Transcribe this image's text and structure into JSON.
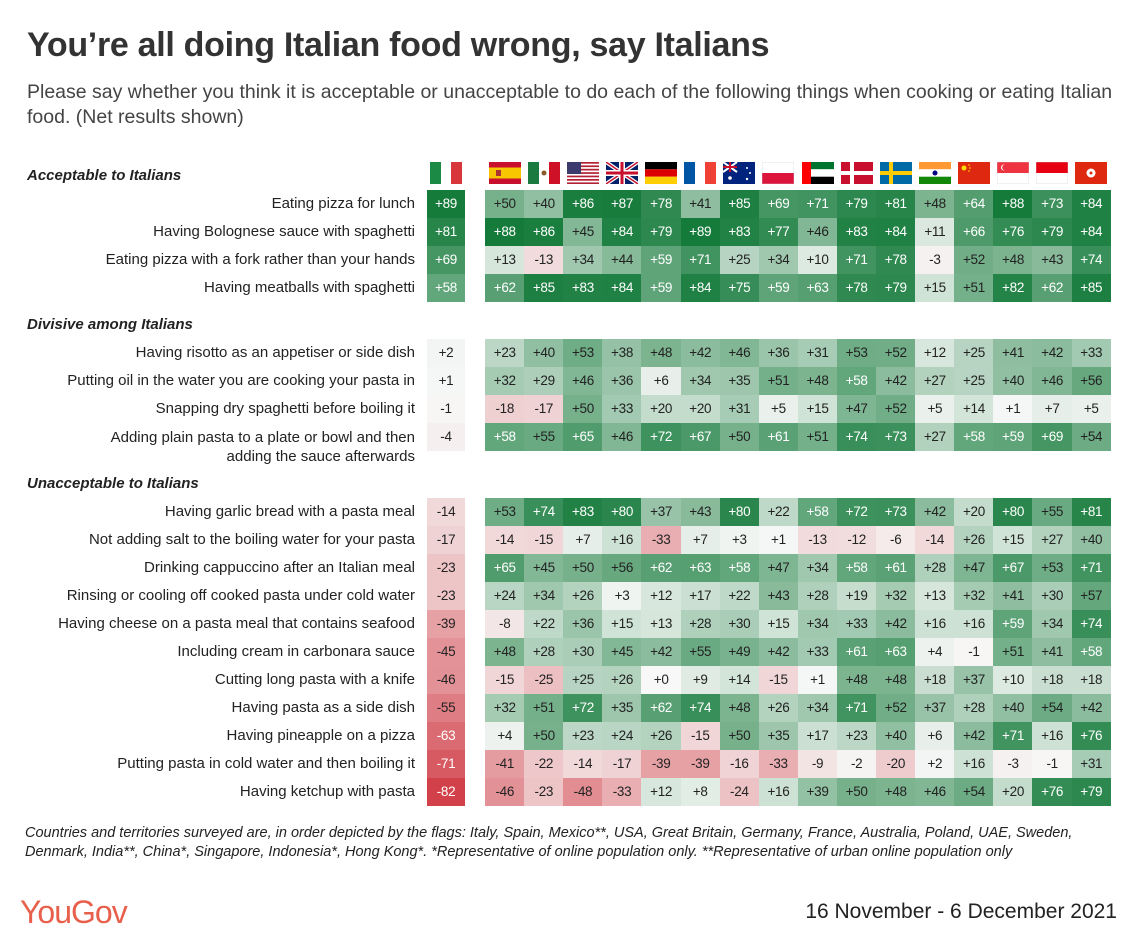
{
  "title": "You’re all doing Italian food wrong, say Italians",
  "subtitle": "Please say whether you think it is acceptable or unacceptable to do each of the following things when cooking or eating Italian food. (Net results shown)",
  "footnote": "Countries and territories surveyed are, in order depicted by the flags: Italy, Spain, Mexico**, USA, Great Britain, Germany, France, Australia, Poland, UAE, Sweden, Denmark, India**, China*, Singapore, Indonesia*, Hong Kong*. *Representative of online population only. **Representative of urban online population only",
  "logo": "YouGov",
  "date": "16 November - 6 December 2021",
  "colors": {
    "positive": "#157b3b",
    "negative": "#d13a44",
    "neutral": "#f7f8f7"
  },
  "chart_data": {
    "type": "heatmap",
    "columns": [
      "italy-flag",
      "spain-flag",
      "mexico-flag",
      "usa-flag",
      "uk-flag",
      "germany-flag",
      "france-flag",
      "australia-flag",
      "poland-flag",
      "uae-flag",
      "denmark-flag",
      "sweden-flag",
      "india-flag",
      "china-flag",
      "singapore-flag",
      "indonesia-flag",
      "hongkong-flag"
    ],
    "sections": [
      {
        "title": "Acceptable to Italians",
        "rows": [
          {
            "label": "Eating pizza for lunch",
            "values": [
              89,
              50,
              40,
              86,
              87,
              78,
              41,
              85,
              69,
              71,
              79,
              81,
              48,
              64,
              88,
              73,
              84
            ]
          },
          {
            "label": "Having Bolognese sauce with spaghetti",
            "values": [
              81,
              88,
              86,
              45,
              84,
              79,
              89,
              83,
              77,
              46,
              83,
              84,
              11,
              66,
              76,
              79,
              84
            ]
          },
          {
            "label": "Eating pizza with a fork rather than your hands",
            "values": [
              69,
              13,
              -13,
              34,
              44,
              59,
              71,
              25,
              34,
              10,
              71,
              78,
              -3,
              52,
              48,
              43,
              74
            ]
          },
          {
            "label": "Having meatballs with spaghetti",
            "values": [
              58,
              62,
              85,
              83,
              84,
              59,
              84,
              75,
              59,
              63,
              78,
              79,
              15,
              51,
              82,
              62,
              85
            ]
          }
        ]
      },
      {
        "title": "Divisive among Italians",
        "rows": [
          {
            "label": "Having risotto as an appetiser or side dish",
            "values": [
              2,
              23,
              40,
              53,
              38,
              48,
              42,
              46,
              36,
              31,
              53,
              52,
              12,
              25,
              41,
              42,
              33
            ]
          },
          {
            "label": "Putting oil in the water you are cooking your pasta in",
            "values": [
              1,
              32,
              29,
              46,
              36,
              6,
              34,
              35,
              51,
              48,
              58,
              42,
              27,
              25,
              40,
              46,
              56
            ]
          },
          {
            "label": "Snapping dry spaghetti before boiling it",
            "values": [
              -1,
              -18,
              -17,
              50,
              33,
              20,
              20,
              31,
              5,
              15,
              47,
              52,
              5,
              14,
              1,
              7,
              5
            ]
          },
          {
            "label": "Adding plain pasta to a plate or bowl and then adding the sauce afterwards",
            "label_lines": [
              "Adding plain pasta to a plate or bowl and then",
              "adding the sauce afterwards"
            ],
            "values": [
              -4,
              58,
              55,
              65,
              46,
              72,
              67,
              50,
              61,
              51,
              74,
              73,
              27,
              58,
              59,
              69,
              54
            ]
          }
        ]
      },
      {
        "title": "Unacceptable to Italians",
        "rows": [
          {
            "label": "Having garlic bread with a pasta meal",
            "values": [
              -14,
              53,
              74,
              83,
              80,
              37,
              43,
              80,
              22,
              58,
              72,
              73,
              42,
              20,
              80,
              55,
              81
            ]
          },
          {
            "label": "Not adding salt to the boiling water for your pasta",
            "values": [
              -17,
              -14,
              -15,
              7,
              16,
              -33,
              7,
              3,
              1,
              -13,
              -12,
              -6,
              -14,
              26,
              15,
              27,
              40
            ]
          },
          {
            "label": "Drinking cappuccino after an Italian meal",
            "values": [
              -23,
              65,
              45,
              50,
              56,
              62,
              63,
              58,
              47,
              34,
              58,
              61,
              28,
              47,
              67,
              53,
              71
            ]
          },
          {
            "label": "Rinsing or cooling off cooked pasta under cold water",
            "values": [
              -23,
              24,
              34,
              26,
              3,
              12,
              17,
              22,
              43,
              28,
              19,
              32,
              13,
              32,
              41,
              30,
              57
            ]
          },
          {
            "label": "Having cheese on a pasta meal that contains seafood",
            "values": [
              -39,
              -8,
              22,
              36,
              15,
              13,
              28,
              30,
              15,
              34,
              33,
              42,
              16,
              16,
              59,
              34,
              74
            ]
          },
          {
            "label": "Including cream in carbonara sauce",
            "values": [
              -45,
              48,
              28,
              30,
              45,
              42,
              55,
              49,
              42,
              33,
              61,
              63,
              4,
              -1,
              51,
              41,
              58
            ]
          },
          {
            "label": "Cutting long pasta with a knife",
            "values": [
              -46,
              -15,
              -25,
              25,
              26,
              0,
              9,
              14,
              -15,
              1,
              48,
              48,
              18,
              37,
              10,
              18,
              18
            ]
          },
          {
            "label": "Having pasta as a side dish",
            "values": [
              -55,
              32,
              51,
              72,
              35,
              62,
              74,
              48,
              26,
              34,
              71,
              52,
              37,
              28,
              40,
              54,
              42
            ]
          },
          {
            "label": "Having pineapple on a pizza",
            "values": [
              -63,
              4,
              50,
              23,
              24,
              26,
              -15,
              50,
              35,
              17,
              23,
              40,
              6,
              42,
              71,
              16,
              76
            ]
          },
          {
            "label": "Putting pasta in cold water and then boiling it",
            "values": [
              -71,
              -41,
              -22,
              -14,
              -17,
              -39,
              -39,
              -16,
              -33,
              -9,
              -2,
              -20,
              2,
              16,
              -3,
              -1,
              31
            ]
          },
          {
            "label": "Having ketchup with pasta",
            "values": [
              -82,
              -46,
              -23,
              -48,
              -33,
              12,
              8,
              -24,
              16,
              39,
              50,
              48,
              46,
              54,
              20,
              76,
              79
            ]
          }
        ]
      }
    ]
  }
}
